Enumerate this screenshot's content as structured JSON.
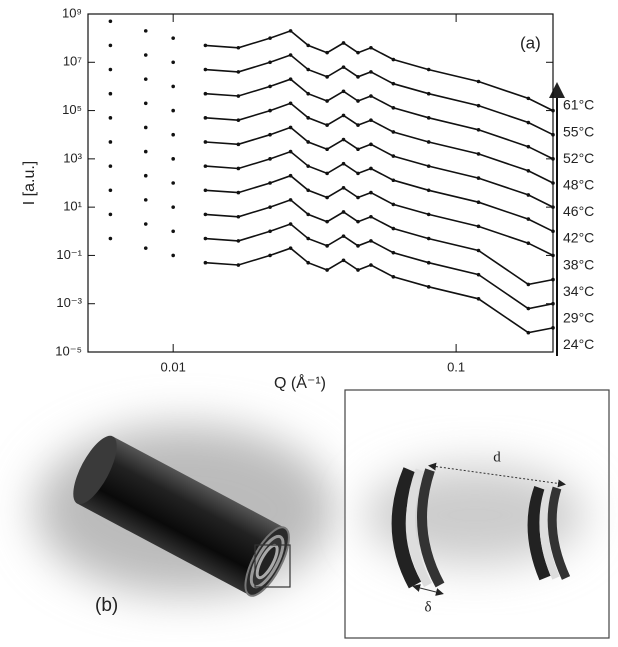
{
  "chart_data": {
    "type": "line",
    "x_label": "Q (Å⁻¹)",
    "y_label": "I [a.u.]",
    "annotation": "(a)",
    "x": [
      0.006,
      0.008,
      0.01,
      0.013,
      0.017,
      0.022,
      0.026,
      0.03,
      0.035,
      0.04,
      0.045,
      0.05,
      0.06,
      0.08,
      0.12,
      0.18,
      0.22
    ],
    "xlim": [
      0.005,
      0.22
    ],
    "xticks": [
      0.01,
      0.1
    ],
    "x_log": true,
    "ylim": [
      1e-05,
      1000000000.0
    ],
    "y_log": true,
    "yticks": [
      {
        "value": 1e-05,
        "label": "10⁻⁵"
      },
      {
        "value": 0.001,
        "label": "10⁻³"
      },
      {
        "value": 0.1,
        "label": "10⁻¹"
      },
      {
        "value": 10,
        "label": "10¹"
      },
      {
        "value": 1000,
        "label": "10³"
      },
      {
        "value": 100000,
        "label": "10⁵"
      },
      {
        "value": 10000000.0,
        "label": "10⁷"
      },
      {
        "value": 1000000000.0,
        "label": "10⁹"
      }
    ],
    "color": "#111111",
    "series": [
      {
        "name": "24°C",
        "values": [
          0.5,
          0.2,
          0.1,
          0.05,
          0.04,
          0.1,
          0.2,
          0.05,
          0.025,
          0.063,
          0.025,
          0.04,
          0.013,
          0.005,
          0.0016,
          6.3e-05,
          0.0001
        ],
        "fit_values": [
          null,
          null,
          null,
          0.05,
          0.04,
          0.1,
          0.2,
          0.05,
          0.025,
          0.063,
          0.025,
          0.04,
          0.013,
          0.005,
          0.0016,
          6.3e-05,
          0.0001
        ]
      },
      {
        "name": "29°C",
        "values": [
          5.0,
          2.0,
          1.0,
          0.5,
          0.4,
          1.0,
          2.0,
          0.5,
          0.25,
          0.63,
          0.25,
          0.4,
          0.13,
          0.05,
          0.016,
          0.00063,
          0.001
        ],
        "fit_values": [
          null,
          null,
          null,
          0.5,
          0.4,
          1.0,
          2.0,
          0.5,
          0.25,
          0.63,
          0.25,
          0.4,
          0.13,
          0.05,
          0.016,
          0.00063,
          0.001
        ]
      },
      {
        "name": "34°C",
        "values": [
          50.0,
          20.0,
          10.0,
          5.0,
          4.0,
          10.0,
          20.0,
          5.0,
          2.5,
          6.3,
          2.5,
          4.0,
          1.3,
          0.5,
          0.16,
          0.0063,
          0.01
        ],
        "fit_values": [
          null,
          null,
          null,
          5.0,
          4.0,
          10.0,
          20.0,
          5.0,
          2.5,
          6.3,
          2.5,
          4.0,
          1.3,
          0.5,
          0.16,
          0.0063,
          0.01
        ]
      },
      {
        "name": "38°C",
        "values": [
          500.0,
          200.0,
          100.0,
          50.0,
          40.0,
          100.0,
          200.0,
          50.0,
          25.0,
          63.0,
          25.0,
          40.0,
          13.0,
          5.0,
          1.6,
          0.32,
          0.1
        ],
        "fit_values": [
          null,
          null,
          null,
          50.0,
          40.0,
          100.0,
          200.0,
          50.0,
          25.0,
          63.0,
          25.0,
          40.0,
          13.0,
          5.0,
          1.6,
          0.32,
          0.1
        ]
      },
      {
        "name": "42°C",
        "values": [
          5000.0,
          2000.0,
          1000.0,
          500.0,
          400.0,
          1000.0,
          2000.0,
          500.0,
          250.0,
          630.0,
          250.0,
          400.0,
          130.0,
          50.0,
          16.0,
          3.2,
          1.0
        ],
        "fit_values": [
          null,
          null,
          null,
          500.0,
          400.0,
          1000.0,
          2000.0,
          500.0,
          250.0,
          630.0,
          250.0,
          400.0,
          130.0,
          50.0,
          16.0,
          3.2,
          1.0
        ]
      },
      {
        "name": "46°C",
        "values": [
          50000.0,
          20000.0,
          10000.0,
          5000.0,
          4000.0,
          10000.0,
          20000.0,
          5000.0,
          2500.0,
          6300.0,
          2500.0,
          4000.0,
          1300.0,
          500.0,
          160.0,
          32.0,
          10.0
        ],
        "fit_values": [
          null,
          null,
          null,
          5000.0,
          4000.0,
          10000.0,
          20000.0,
          5000.0,
          2500.0,
          6300.0,
          2500.0,
          4000.0,
          1300.0,
          500.0,
          160.0,
          32.0,
          10.0
        ]
      },
      {
        "name": "48°C",
        "values": [
          500000.0,
          200000.0,
          100000.0,
          50000.0,
          40000.0,
          100000.0,
          200000.0,
          50000.0,
          25000.0,
          63000.0,
          25000.0,
          40000.0,
          13000.0,
          5000.0,
          1600.0,
          320.0,
          100.0
        ],
        "fit_values": [
          null,
          null,
          null,
          50000.0,
          40000.0,
          100000.0,
          200000.0,
          50000.0,
          25000.0,
          63000.0,
          25000.0,
          40000.0,
          13000.0,
          5000.0,
          1600.0,
          320.0,
          100.0
        ]
      },
      {
        "name": "52°C",
        "values": [
          5000000.0,
          2000000.0,
          1000000.0,
          500000.0,
          400000.0,
          1000000.0,
          2000000.0,
          500000.0,
          250000.0,
          630000.0,
          250000.0,
          400000.0,
          130000.0,
          50000.0,
          16000.0,
          3200.0,
          1000.0
        ],
        "fit_values": [
          null,
          null,
          null,
          500000.0,
          400000.0,
          1000000.0,
          2000000.0,
          500000.0,
          250000.0,
          630000.0,
          250000.0,
          400000.0,
          130000.0,
          50000.0,
          16000.0,
          3200.0,
          1000.0
        ]
      },
      {
        "name": "55°C",
        "values": [
          50000000.0,
          20000000.0,
          10000000.0,
          5000000.0,
          4000000.0,
          10000000.0,
          20000000.0,
          5000000.0,
          2500000.0,
          6300000.0,
          2500000.0,
          4000000.0,
          1300000.0,
          500000.0,
          160000.0,
          32000.0,
          10000.0
        ],
        "fit_values": [
          null,
          null,
          null,
          5000000.0,
          4000000.0,
          10000000.0,
          20000000.0,
          5000000.0,
          2500000.0,
          6300000.0,
          2500000.0,
          4000000.0,
          1300000.0,
          500000.0,
          160000.0,
          32000.0,
          10000.0
        ]
      },
      {
        "name": "61°C",
        "values": [
          500000000.0,
          200000000.0,
          100000000.0,
          50000000.0,
          40000000.0,
          100000000.0,
          200000000.0,
          50000000.0,
          25000000.0,
          63000000.0,
          25000000.0,
          40000000.0,
          13000000.0,
          5000000.0,
          1600000.0,
          320000.0,
          100000.0
        ],
        "fit_values": [
          null,
          null,
          null,
          50000000.0,
          40000000.0,
          100000000.0,
          200000000.0,
          50000000.0,
          25000000.0,
          63000000.0,
          25000000.0,
          40000000.0,
          13000000.0,
          5000000.0,
          1600000.0,
          320000.0,
          100000.0
        ]
      }
    ]
  },
  "panel_b": {
    "label": "(b)",
    "d_label": "d",
    "delta_label": "δ"
  }
}
